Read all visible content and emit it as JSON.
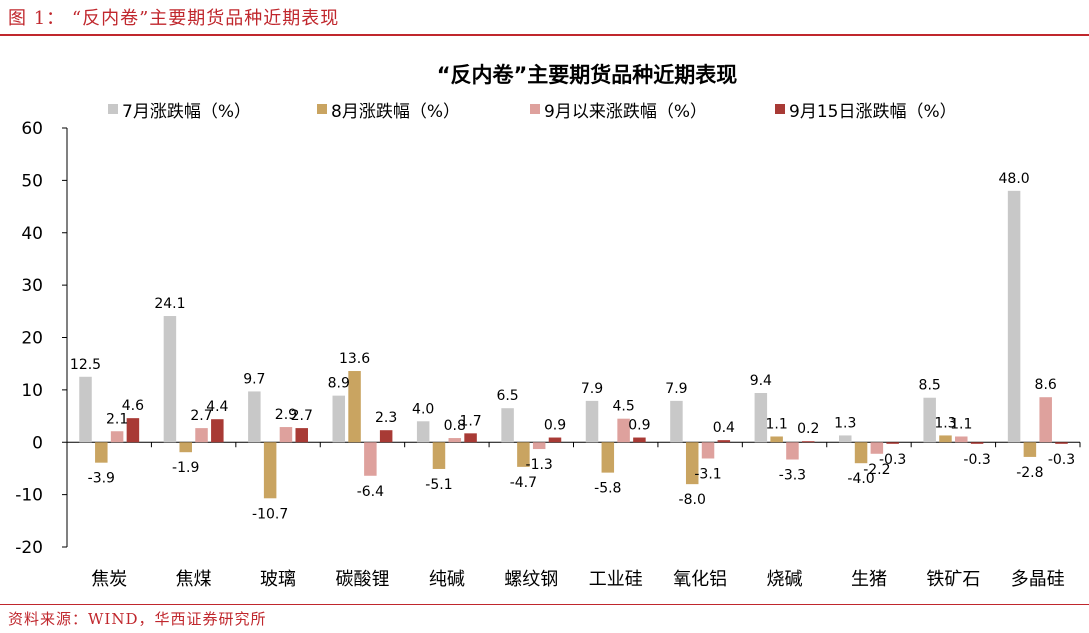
{
  "figure": {
    "caption": "图 1： “反内卷”主要期货品种近期表现",
    "source": "资料来源：WIND，华西证券研究所"
  },
  "chart_data": {
    "type": "bar",
    "title": "“反内卷”主要期货品种近期表现",
    "categories": [
      "焦炭",
      "焦煤",
      "玻璃",
      "碳酸锂",
      "纯碱",
      "螺纹钢",
      "工业硅",
      "氧化铝",
      "烧碱",
      "生猪",
      "铁矿石",
      "多晶硅"
    ],
    "series": [
      {
        "name": "7月涨跌幅（%）",
        "color": "#c8c8c8",
        "values": [
          12.5,
          24.1,
          9.7,
          8.9,
          4.0,
          6.5,
          7.9,
          7.9,
          9.4,
          1.3,
          8.5,
          48.0
        ]
      },
      {
        "name": "8月涨跌幅（%）",
        "color": "#c9a461",
        "values": [
          -3.9,
          -1.9,
          -10.7,
          13.6,
          -5.1,
          -4.7,
          -5.8,
          -8.0,
          1.1,
          -4.0,
          1.3,
          -2.8
        ]
      },
      {
        "name": "9月以来涨跌幅（%）",
        "color": "#dea19d",
        "values": [
          2.1,
          2.7,
          2.9,
          -6.4,
          0.8,
          -1.3,
          4.5,
          -3.1,
          -3.3,
          -2.2,
          1.1,
          8.6
        ]
      },
      {
        "name": "9月15日涨跌幅（%）",
        "color": "#a83a35",
        "values": [
          4.6,
          4.4,
          2.7,
          2.3,
          1.7,
          0.9,
          0.9,
          0.4,
          0.2,
          -0.3,
          -0.3,
          -0.3
        ]
      }
    ],
    "ylim": [
      -20,
      60
    ],
    "yticks": [
      -20,
      -10,
      0,
      10,
      20,
      30,
      40,
      50,
      60
    ],
    "legend_position": "top",
    "grid": false
  }
}
